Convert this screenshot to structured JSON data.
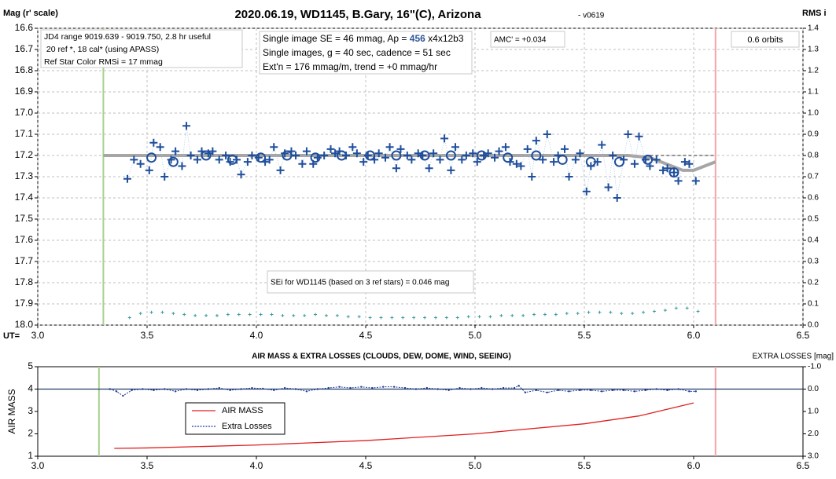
{
  "chart_data": [
    {
      "type": "scatter",
      "title": "2020.06.19, WD1145, B.Gary, 16\"(C), Arizona",
      "subtitle": "- v0619",
      "y_label": "Mag (r' scale)",
      "y2_label": "RMS i",
      "x_label": "UT=",
      "xlim": [
        3.0,
        6.5
      ],
      "xticks": [
        {
          "value": 3,
          "label": "3.0"
        },
        3.5,
        {
          "value": 4,
          "label": "4.0"
        },
        4.5,
        {
          "value": 5,
          "label": "5.0"
        },
        5.5,
        {
          "value": 6,
          "label": "6.0"
        },
        6.5
      ],
      "ylim": [
        16.6,
        18.0
      ],
      "invert_y": true,
      "yticks": [
        16.6,
        16.7,
        16.8,
        16.9,
        {
          "value": 17,
          "label": "17.0"
        },
        17.1,
        17.2,
        17.3,
        17.4,
        17.5,
        17.6,
        17.7,
        17.8,
        17.9,
        {
          "value": 18,
          "label": "18.0"
        }
      ],
      "y2lim": [
        0,
        1.4
      ],
      "y2ticks": [
        {
          "value": 0,
          "label": "0.0"
        },
        0.1,
        0.2,
        0.3,
        0.4,
        0.5,
        0.6,
        0.7,
        0.8,
        0.9,
        {
          "value": 1,
          "label": "1.0"
        },
        1.1,
        1.2,
        1.3,
        1.4
      ],
      "grid": true,
      "vlines": [
        {
          "x": 3.3,
          "color": "#a9d18e"
        },
        {
          "x": 6.1,
          "color": "#f4a6a6"
        }
      ],
      "hlines": [
        {
          "y": 17.2,
          "x": [
            5.8,
            6.1
          ],
          "color": "#555555",
          "dashed": true
        }
      ],
      "annotations": [
        {
          "lines": [
            "JD4 range 9019.639 - 9019.750, 2.8 hr useful",
            " 20 ref *, 18 cal* (using APASS)",
            "Ref Star Color RMSi = 17 mmag"
          ]
        },
        {
          "lines": [
            [
              "Single image SE = 46 mmag, Ap = ",
              "456",
              " x4x12b3"
            ],
            "Single images, g = 40 sec, cadence = 51 sec",
            "Ext'n = 176 mmag/m, trend = +0 mmag/hr"
          ]
        },
        {
          "lines": [
            "AMC' = +0.034"
          ]
        },
        {
          "lines": [
            "0.6 orbits"
          ]
        },
        {
          "lines": [
            "SEi for WD1145 (based on 3 ref stars) = 0.046 mag"
          ]
        }
      ],
      "series": [
        {
          "style": "line",
          "color": "#a6a6a6",
          "x": [
            3.3,
            5.7,
            5.8,
            5.9,
            5.95,
            6.0,
            6.05,
            6.1
          ],
          "values": [
            17.2,
            17.2,
            17.21,
            17.25,
            17.27,
            17.27,
            17.25,
            17.23
          ]
        },
        {
          "style": "plus",
          "connect": true,
          "color": "#1f4e9c",
          "x": [
            3.41,
            3.44,
            3.47,
            3.51,
            3.53,
            3.56,
            3.58,
            3.61,
            3.63,
            3.66,
            3.68,
            3.7,
            3.73,
            3.75,
            3.78,
            3.8,
            3.83,
            3.86,
            3.88,
            3.91,
            3.93,
            3.96,
            3.98,
            4.01,
            4.04,
            4.06,
            4.08,
            4.11,
            4.13,
            4.16,
            4.18,
            4.21,
            4.23,
            4.26,
            4.28,
            4.31,
            4.34,
            4.36,
            4.38,
            4.41,
            4.44,
            4.46,
            4.49,
            4.51,
            4.54,
            4.56,
            4.59,
            4.61,
            4.64,
            4.66,
            4.69,
            4.71,
            4.74,
            4.76,
            4.79,
            4.81,
            4.84,
            4.86,
            4.89,
            4.91,
            4.94,
            4.96,
            4.99,
            5.01,
            5.04,
            5.06,
            5.09,
            5.11,
            5.14,
            5.16,
            5.19,
            5.21,
            5.24,
            5.26,
            5.28,
            5.31,
            5.33,
            5.36,
            5.38,
            5.41,
            5.43,
            5.46,
            5.48,
            5.51,
            5.53,
            5.56,
            5.58,
            5.61,
            5.63,
            5.65,
            5.68,
            5.7,
            5.73,
            5.75,
            5.78,
            5.8,
            5.83,
            5.86,
            5.88,
            5.91,
            5.93,
            5.96,
            5.98,
            6.01
          ],
          "values": [
            17.31,
            17.22,
            17.24,
            17.27,
            17.14,
            17.16,
            17.3,
            17.22,
            17.18,
            17.25,
            17.06,
            17.2,
            17.22,
            17.18,
            17.19,
            17.18,
            17.22,
            17.2,
            17.23,
            17.22,
            17.29,
            17.23,
            17.2,
            17.21,
            17.23,
            17.22,
            17.16,
            17.27,
            17.19,
            17.18,
            17.2,
            17.24,
            17.18,
            17.24,
            17.21,
            17.2,
            17.17,
            17.19,
            17.18,
            17.2,
            17.16,
            17.19,
            17.23,
            17.2,
            17.22,
            17.19,
            17.21,
            17.16,
            17.26,
            17.17,
            17.2,
            17.22,
            17.19,
            17.2,
            17.26,
            17.19,
            17.22,
            17.12,
            17.27,
            17.16,
            17.22,
            17.2,
            17.19,
            17.23,
            17.2,
            17.19,
            17.21,
            17.18,
            17.16,
            17.23,
            17.24,
            17.25,
            17.17,
            17.3,
            17.13,
            17.22,
            17.1,
            17.23,
            17.2,
            17.17,
            17.3,
            17.22,
            17.19,
            17.37,
            17.25,
            17.23,
            17.15,
            17.35,
            17.2,
            17.4,
            17.22,
            17.1,
            17.24,
            17.11,
            17.22,
            17.25,
            17.22,
            17.27,
            17.26,
            17.28,
            17.32,
            17.23,
            17.24,
            17.32
          ]
        },
        {
          "style": "circle",
          "color": "#1f4e9c",
          "x": [
            3.52,
            3.62,
            3.77,
            3.89,
            4.02,
            4.14,
            4.27,
            4.39,
            4.52,
            4.64,
            4.77,
            4.89,
            5.03,
            5.15,
            5.28,
            5.4,
            5.53,
            5.66,
            5.79,
            5.91
          ],
          "values": [
            17.21,
            17.23,
            17.2,
            17.22,
            17.21,
            17.2,
            17.21,
            17.2,
            17.2,
            17.2,
            17.2,
            17.2,
            17.2,
            17.21,
            17.2,
            17.22,
            17.23,
            17.23,
            17.22,
            17.28
          ]
        },
        {
          "style": "small-plus",
          "axis": "y2",
          "color": "#3a9a9a",
          "x": [
            3.42,
            3.47,
            3.52,
            3.57,
            3.62,
            3.67,
            3.72,
            3.77,
            3.82,
            3.87,
            3.92,
            3.97,
            4.02,
            4.07,
            4.12,
            4.17,
            4.22,
            4.27,
            4.32,
            4.37,
            4.42,
            4.47,
            4.52,
            4.57,
            4.62,
            4.67,
            4.72,
            4.77,
            4.82,
            4.87,
            4.92,
            4.97,
            5.02,
            5.07,
            5.12,
            5.17,
            5.22,
            5.27,
            5.32,
            5.37,
            5.42,
            5.47,
            5.52,
            5.57,
            5.62,
            5.67,
            5.72,
            5.77,
            5.82,
            5.87,
            5.92,
            5.97,
            6.02
          ],
          "values": [
            0.035,
            0.055,
            0.06,
            0.06,
            0.055,
            0.05,
            0.045,
            0.045,
            0.045,
            0.05,
            0.05,
            0.05,
            0.05,
            0.05,
            0.045,
            0.045,
            0.045,
            0.05,
            0.045,
            0.045,
            0.04,
            0.04,
            0.035,
            0.035,
            0.035,
            0.035,
            0.035,
            0.035,
            0.035,
            0.035,
            0.035,
            0.04,
            0.04,
            0.04,
            0.045,
            0.045,
            0.045,
            0.05,
            0.05,
            0.05,
            0.055,
            0.055,
            0.06,
            0.06,
            0.06,
            0.055,
            0.055,
            0.06,
            0.065,
            0.07,
            0.08,
            0.08,
            0.065
          ]
        }
      ]
    },
    {
      "type": "line",
      "title": "AIR MASS & EXTRA LOSSES (CLOUDS, DEW, DOME, WIND, SEEING)",
      "y_label": "AIR MASS",
      "y2_label": "EXTRA LOSSES [mag]",
      "xlim": [
        3.0,
        6.5
      ],
      "xticks": [
        {
          "value": 3,
          "label": "3.0"
        },
        3.5,
        {
          "value": 4,
          "label": "4.0"
        },
        4.5,
        {
          "value": 5,
          "label": "5.0"
        },
        5.5,
        {
          "value": 6,
          "label": "6.0"
        },
        6.5
      ],
      "ylim": [
        1,
        5
      ],
      "yticks": [
        1,
        2,
        3,
        4,
        5
      ],
      "y2lim": [
        -1.0,
        3.0
      ],
      "invert_y2": true,
      "y2ticks": [
        {
          "value": -1,
          "label": "-1.0"
        },
        {
          "value": 0,
          "label": "0.0"
        },
        {
          "value": 1,
          "label": "1.0"
        },
        {
          "value": 2,
          "label": "2.0"
        },
        {
          "value": 3,
          "label": "3.0"
        }
      ],
      "vlines": [
        {
          "x": 3.28,
          "color": "#a9d18e"
        },
        {
          "x": 6.1,
          "color": "#f4a6a6"
        }
      ],
      "hlines": [
        {
          "y": 4,
          "color": "#1f3864"
        }
      ],
      "legend": "inside",
      "series": [
        {
          "name": "AIR MASS",
          "style": "line",
          "color": "#e02020",
          "x": [
            3.35,
            3.5,
            4.0,
            4.5,
            5.0,
            5.5,
            5.75,
            6.0
          ],
          "values": [
            1.35,
            1.37,
            1.5,
            1.7,
            2.0,
            2.45,
            2.8,
            3.38
          ]
        },
        {
          "name": "Extra Losses",
          "style": "dotted-line",
          "axis": "y2",
          "color": "#1f3c9c",
          "x": [
            3.33,
            3.36,
            3.39,
            3.43,
            3.48,
            3.53,
            3.58,
            3.63,
            3.68,
            3.73,
            3.78,
            3.83,
            3.88,
            3.93,
            3.98,
            4.03,
            4.08,
            4.13,
            4.18,
            4.23,
            4.28,
            4.33,
            4.38,
            4.43,
            4.48,
            4.53,
            4.58,
            4.63,
            4.68,
            4.73,
            4.78,
            4.83,
            4.88,
            4.93,
            4.98,
            5.03,
            5.08,
            5.13,
            5.18,
            5.2,
            5.23,
            5.28,
            5.33,
            5.38,
            5.43,
            5.48,
            5.53,
            5.58,
            5.63,
            5.68,
            5.73,
            5.78,
            5.83,
            5.88,
            5.93,
            5.98,
            6.01
          ],
          "values": [
            0.0,
            0.1,
            0.3,
            0.05,
            0.0,
            0.05,
            0.0,
            0.1,
            0.0,
            0.05,
            0.0,
            -0.05,
            0.05,
            0.0,
            -0.05,
            -0.02,
            0.05,
            -0.05,
            0.0,
            0.1,
            0.0,
            -0.05,
            -0.1,
            -0.05,
            -0.1,
            -0.05,
            -0.1,
            -0.1,
            -0.05,
            0.0,
            -0.05,
            0.0,
            0.05,
            -0.05,
            0.0,
            -0.05,
            0.0,
            -0.05,
            -0.05,
            -0.15,
            0.15,
            0.05,
            0.15,
            0.05,
            0.1,
            0.05,
            0.05,
            0.1,
            0.05,
            0.05,
            0.1,
            0.05,
            0.0,
            0.05,
            0.0,
            0.1,
            0.1
          ]
        }
      ]
    }
  ]
}
